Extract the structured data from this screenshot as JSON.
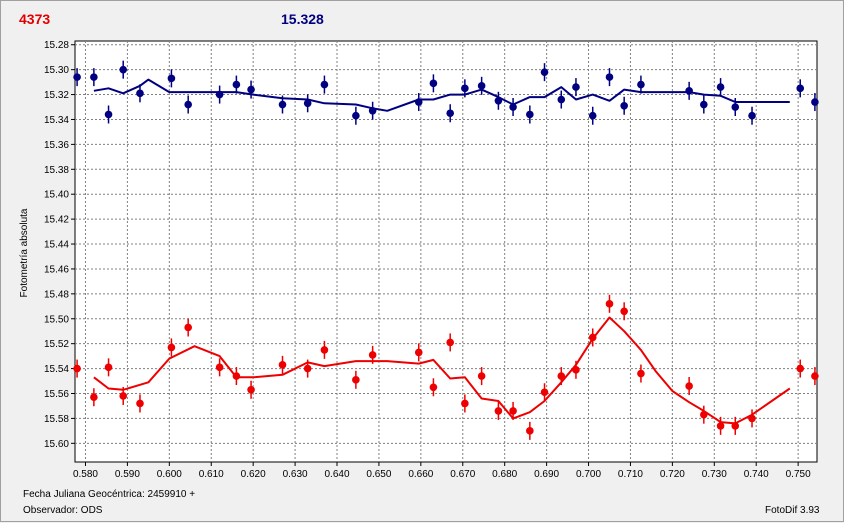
{
  "header": {
    "left_value": "4373",
    "right_value": "15.328"
  },
  "footer": {
    "date_label": "Fecha Juliana Geocéntrica: 2459910 +",
    "observer_label": "Observador: ODS",
    "software_label": "FotoDif 3.93"
  },
  "colors": {
    "series_blue": "#000080",
    "series_red": "#ee0000",
    "grid": "#808080",
    "plot_bg": "#ffffff"
  },
  "chart_data": {
    "type": "scatter",
    "ylabel": "Fotometría absoluta",
    "xlabel": "",
    "xlim": [
      0.5775,
      0.7545
    ],
    "ylim": [
      15.615,
      15.277
    ],
    "y_inverted": true,
    "grid": true,
    "x_ticks": [
      "0.580",
      "0.590",
      "0.600",
      "0.610",
      "0.620",
      "0.630",
      "0.640",
      "0.650",
      "0.660",
      "0.670",
      "0.680",
      "0.690",
      "0.700",
      "0.710",
      "0.720",
      "0.730",
      "0.740",
      "0.750"
    ],
    "y_ticks": [
      "15.28",
      "15.30",
      "15.32",
      "15.34",
      "15.36",
      "15.38",
      "15.40",
      "15.42",
      "15.44",
      "15.46",
      "15.48",
      "15.50",
      "15.52",
      "15.54",
      "15.56",
      "15.58",
      "15.60"
    ],
    "series": [
      {
        "color": "#000080",
        "points": [
          {
            "x": 0.578,
            "y": 15.306
          },
          {
            "x": 0.582,
            "y": 15.306
          },
          {
            "x": 0.5855,
            "y": 15.336
          },
          {
            "x": 0.589,
            "y": 15.3
          },
          {
            "x": 0.593,
            "y": 15.319
          },
          {
            "x": 0.6005,
            "y": 15.307
          },
          {
            "x": 0.6045,
            "y": 15.328
          },
          {
            "x": 0.612,
            "y": 15.32
          },
          {
            "x": 0.616,
            "y": 15.312
          },
          {
            "x": 0.6195,
            "y": 15.316
          },
          {
            "x": 0.627,
            "y": 15.328
          },
          {
            "x": 0.633,
            "y": 15.327
          },
          {
            "x": 0.637,
            "y": 15.312
          },
          {
            "x": 0.6445,
            "y": 15.337
          },
          {
            "x": 0.6485,
            "y": 15.333
          },
          {
            "x": 0.6595,
            "y": 15.326
          },
          {
            "x": 0.663,
            "y": 15.311
          },
          {
            "x": 0.667,
            "y": 15.335
          },
          {
            "x": 0.6705,
            "y": 15.315
          },
          {
            "x": 0.6745,
            "y": 15.313
          },
          {
            "x": 0.6785,
            "y": 15.325
          },
          {
            "x": 0.682,
            "y": 15.33
          },
          {
            "x": 0.686,
            "y": 15.336
          },
          {
            "x": 0.6895,
            "y": 15.302
          },
          {
            "x": 0.6935,
            "y": 15.324
          },
          {
            "x": 0.697,
            "y": 15.314
          },
          {
            "x": 0.701,
            "y": 15.337
          },
          {
            "x": 0.705,
            "y": 15.306
          },
          {
            "x": 0.7085,
            "y": 15.329
          },
          {
            "x": 0.7125,
            "y": 15.312
          },
          {
            "x": 0.724,
            "y": 15.317
          },
          {
            "x": 0.7275,
            "y": 15.328
          },
          {
            "x": 0.7315,
            "y": 15.314
          },
          {
            "x": 0.735,
            "y": 15.33
          },
          {
            "x": 0.739,
            "y": 15.337
          },
          {
            "x": 0.7505,
            "y": 15.315
          },
          {
            "x": 0.754,
            "y": 15.326
          }
        ],
        "trend": [
          {
            "x": 0.582,
            "y": 15.317
          },
          {
            "x": 0.5855,
            "y": 15.315
          },
          {
            "x": 0.589,
            "y": 15.319
          },
          {
            "x": 0.593,
            "y": 15.313
          },
          {
            "x": 0.595,
            "y": 15.308
          },
          {
            "x": 0.6,
            "y": 15.318
          },
          {
            "x": 0.608,
            "y": 15.318
          },
          {
            "x": 0.616,
            "y": 15.318
          },
          {
            "x": 0.62,
            "y": 15.32
          },
          {
            "x": 0.627,
            "y": 15.323
          },
          {
            "x": 0.633,
            "y": 15.324
          },
          {
            "x": 0.637,
            "y": 15.327
          },
          {
            "x": 0.6445,
            "y": 15.328
          },
          {
            "x": 0.6485,
            "y": 15.331
          },
          {
            "x": 0.652,
            "y": 15.333
          },
          {
            "x": 0.6595,
            "y": 15.324
          },
          {
            "x": 0.663,
            "y": 15.324
          },
          {
            "x": 0.667,
            "y": 15.32
          },
          {
            "x": 0.6705,
            "y": 15.32
          },
          {
            "x": 0.6745,
            "y": 15.316
          },
          {
            "x": 0.6785,
            "y": 15.322
          },
          {
            "x": 0.682,
            "y": 15.328
          },
          {
            "x": 0.686,
            "y": 15.322
          },
          {
            "x": 0.6895,
            "y": 15.322
          },
          {
            "x": 0.6935,
            "y": 15.314
          },
          {
            "x": 0.697,
            "y": 15.324
          },
          {
            "x": 0.701,
            "y": 15.32
          },
          {
            "x": 0.705,
            "y": 15.325
          },
          {
            "x": 0.7085,
            "y": 15.316
          },
          {
            "x": 0.7125,
            "y": 15.318
          },
          {
            "x": 0.724,
            "y": 15.318
          },
          {
            "x": 0.7275,
            "y": 15.32
          },
          {
            "x": 0.7315,
            "y": 15.321
          },
          {
            "x": 0.735,
            "y": 15.326
          },
          {
            "x": 0.748,
            "y": 15.326
          }
        ]
      },
      {
        "color": "#ee0000",
        "points": [
          {
            "x": 0.578,
            "y": 15.54
          },
          {
            "x": 0.582,
            "y": 15.563
          },
          {
            "x": 0.5855,
            "y": 15.539
          },
          {
            "x": 0.589,
            "y": 15.562
          },
          {
            "x": 0.593,
            "y": 15.568
          },
          {
            "x": 0.6005,
            "y": 15.523
          },
          {
            "x": 0.6045,
            "y": 15.507
          },
          {
            "x": 0.612,
            "y": 15.539
          },
          {
            "x": 0.616,
            "y": 15.546
          },
          {
            "x": 0.6195,
            "y": 15.557
          },
          {
            "x": 0.627,
            "y": 15.537
          },
          {
            "x": 0.633,
            "y": 15.54
          },
          {
            "x": 0.637,
            "y": 15.525
          },
          {
            "x": 0.6445,
            "y": 15.549
          },
          {
            "x": 0.6485,
            "y": 15.529
          },
          {
            "x": 0.6595,
            "y": 15.527
          },
          {
            "x": 0.663,
            "y": 15.555
          },
          {
            "x": 0.667,
            "y": 15.519
          },
          {
            "x": 0.6705,
            "y": 15.568
          },
          {
            "x": 0.6745,
            "y": 15.546
          },
          {
            "x": 0.6785,
            "y": 15.574
          },
          {
            "x": 0.682,
            "y": 15.574
          },
          {
            "x": 0.686,
            "y": 15.59
          },
          {
            "x": 0.6895,
            "y": 15.559
          },
          {
            "x": 0.6935,
            "y": 15.546
          },
          {
            "x": 0.697,
            "y": 15.541
          },
          {
            "x": 0.701,
            "y": 15.515
          },
          {
            "x": 0.705,
            "y": 15.488
          },
          {
            "x": 0.7085,
            "y": 15.494
          },
          {
            "x": 0.7125,
            "y": 15.544
          },
          {
            "x": 0.724,
            "y": 15.554
          },
          {
            "x": 0.7275,
            "y": 15.577
          },
          {
            "x": 0.7315,
            "y": 15.586
          },
          {
            "x": 0.735,
            "y": 15.586
          },
          {
            "x": 0.739,
            "y": 15.58
          },
          {
            "x": 0.7505,
            "y": 15.54
          },
          {
            "x": 0.754,
            "y": 15.546
          }
        ],
        "trend": [
          {
            "x": 0.582,
            "y": 15.547
          },
          {
            "x": 0.5855,
            "y": 15.556
          },
          {
            "x": 0.589,
            "y": 15.557
          },
          {
            "x": 0.593,
            "y": 15.553
          },
          {
            "x": 0.595,
            "y": 15.551
          },
          {
            "x": 0.6,
            "y": 15.532
          },
          {
            "x": 0.606,
            "y": 15.522
          },
          {
            "x": 0.612,
            "y": 15.53
          },
          {
            "x": 0.616,
            "y": 15.547
          },
          {
            "x": 0.62,
            "y": 15.547
          },
          {
            "x": 0.627,
            "y": 15.545
          },
          {
            "x": 0.633,
            "y": 15.535
          },
          {
            "x": 0.637,
            "y": 15.538
          },
          {
            "x": 0.6445,
            "y": 15.534
          },
          {
            "x": 0.652,
            "y": 15.534
          },
          {
            "x": 0.6595,
            "y": 15.536
          },
          {
            "x": 0.663,
            "y": 15.533
          },
          {
            "x": 0.667,
            "y": 15.548
          },
          {
            "x": 0.6705,
            "y": 15.547
          },
          {
            "x": 0.6745,
            "y": 15.564
          },
          {
            "x": 0.6785,
            "y": 15.566
          },
          {
            "x": 0.682,
            "y": 15.58
          },
          {
            "x": 0.686,
            "y": 15.575
          },
          {
            "x": 0.6895,
            "y": 15.566
          },
          {
            "x": 0.6935,
            "y": 15.551
          },
          {
            "x": 0.697,
            "y": 15.537
          },
          {
            "x": 0.701,
            "y": 15.516
          },
          {
            "x": 0.705,
            "y": 15.499
          },
          {
            "x": 0.7085,
            "y": 15.51
          },
          {
            "x": 0.7125,
            "y": 15.525
          },
          {
            "x": 0.716,
            "y": 15.542
          },
          {
            "x": 0.72,
            "y": 15.558
          },
          {
            "x": 0.724,
            "y": 15.567
          },
          {
            "x": 0.7275,
            "y": 15.574
          },
          {
            "x": 0.7315,
            "y": 15.583
          },
          {
            "x": 0.735,
            "y": 15.584
          },
          {
            "x": 0.739,
            "y": 15.577
          },
          {
            "x": 0.748,
            "y": 15.556
          }
        ]
      }
    ]
  }
}
